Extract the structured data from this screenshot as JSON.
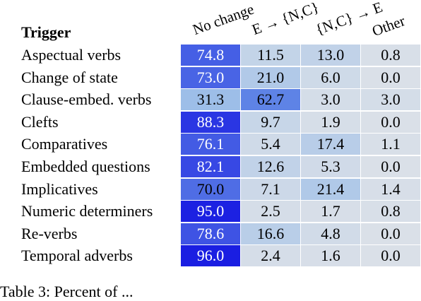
{
  "table": {
    "trigger_header": "Trigger",
    "column_headers": [
      "No change",
      "E → {N,C}",
      "{N,C} → E",
      "Other"
    ],
    "rows": [
      {
        "label": "Aspectual verbs",
        "values": [
          "74.8",
          "11.5",
          "13.0",
          "0.8"
        ]
      },
      {
        "label": "Change of state",
        "values": [
          "73.0",
          "21.0",
          "6.0",
          "0.0"
        ]
      },
      {
        "label": "Clause-embed. verbs",
        "values": [
          "31.3",
          "62.7",
          "3.0",
          "3.0"
        ]
      },
      {
        "label": "Clefts",
        "values": [
          "88.3",
          "9.7",
          "1.9",
          "0.0"
        ]
      },
      {
        "label": "Comparatives",
        "values": [
          "76.1",
          "5.4",
          "17.4",
          "1.1"
        ]
      },
      {
        "label": "Embedded questions",
        "values": [
          "82.1",
          "12.6",
          "5.3",
          "0.0"
        ]
      },
      {
        "label": "Implicatives",
        "values": [
          "70.0",
          "7.1",
          "21.4",
          "1.4"
        ]
      },
      {
        "label": "Numeric determiners",
        "values": [
          "95.0",
          "2.5",
          "1.7",
          "0.8"
        ]
      },
      {
        "label": "Re-verbs",
        "values": [
          "78.6",
          "16.6",
          "4.8",
          "0.0"
        ]
      },
      {
        "label": "Temporal adverbs",
        "values": [
          "96.0",
          "2.4",
          "1.6",
          "0.0"
        ]
      }
    ]
  },
  "caption": "Table 3: Percent of ... "
}
